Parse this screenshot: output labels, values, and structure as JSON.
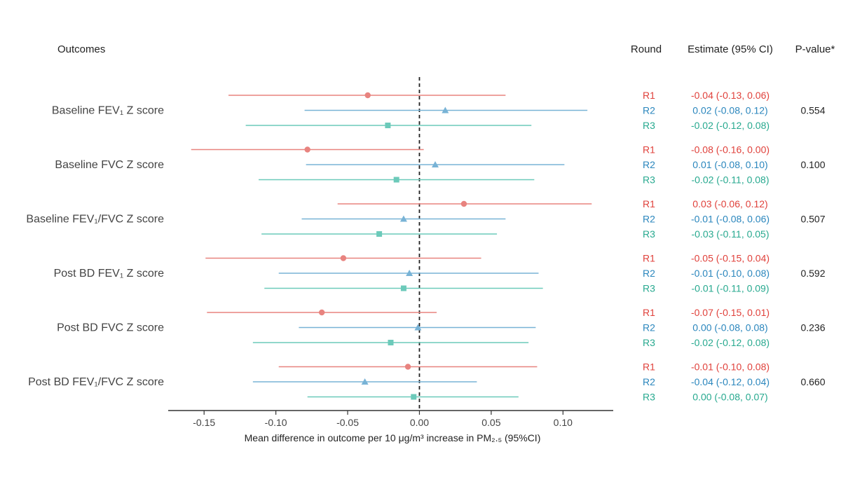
{
  "chart_data": {
    "type": "forest",
    "xlabel": "Mean difference in outcome per 10 μg/m³ increase in PM₂.₅ (95%CI)",
    "xlim": [
      -0.175,
      0.135
    ],
    "xticks": [
      -0.15,
      -0.1,
      -0.05,
      0.0,
      0.05,
      0.1
    ],
    "tick_labels": [
      "-0.15",
      "-0.10",
      "-0.05",
      "0.00",
      "0.05",
      "0.10"
    ],
    "reference_line": 0,
    "headers": {
      "outcomes": "Outcomes",
      "round": "Round",
      "estimate": "Estimate (95% CI)",
      "pvalue": "P-value*"
    },
    "rounds": [
      {
        "name": "R1",
        "color": "#e8837f",
        "text_color": "#e0413b",
        "marker": "circle"
      },
      {
        "name": "R2",
        "color": "#78b3d6",
        "text_color": "#2a86bd",
        "marker": "triangle"
      },
      {
        "name": "R3",
        "color": "#6ccaba",
        "text_color": "#27a98f",
        "marker": "square"
      }
    ],
    "outcomes": [
      {
        "label": "Baseline FEV₁ Z score",
        "pvalue": "0.554",
        "rows": [
          {
            "round": "R1",
            "est": -0.036,
            "lo": -0.133,
            "hi": 0.06,
            "text": "-0.04 (-0.13, 0.06)"
          },
          {
            "round": "R2",
            "est": 0.018,
            "lo": -0.08,
            "hi": 0.117,
            "text": "0.02 (-0.08, 0.12)"
          },
          {
            "round": "R3",
            "est": -0.022,
            "lo": -0.121,
            "hi": 0.078,
            "text": "-0.02 (-0.12, 0.08)"
          }
        ]
      },
      {
        "label": "Baseline FVC Z score",
        "pvalue": "0.100",
        "rows": [
          {
            "round": "R1",
            "est": -0.078,
            "lo": -0.159,
            "hi": 0.003,
            "text": "-0.08 (-0.16, 0.00)"
          },
          {
            "round": "R2",
            "est": 0.011,
            "lo": -0.079,
            "hi": 0.101,
            "text": "0.01 (-0.08, 0.10)"
          },
          {
            "round": "R3",
            "est": -0.016,
            "lo": -0.112,
            "hi": 0.08,
            "text": "-0.02 (-0.11, 0.08)"
          }
        ]
      },
      {
        "label": "Baseline FEV₁/FVC Z score",
        "pvalue": "0.507",
        "rows": [
          {
            "round": "R1",
            "est": 0.031,
            "lo": -0.057,
            "hi": 0.12,
            "text": "0.03 (-0.06, 0.12)"
          },
          {
            "round": "R2",
            "est": -0.011,
            "lo": -0.082,
            "hi": 0.06,
            "text": "-0.01 (-0.08, 0.06)"
          },
          {
            "round": "R3",
            "est": -0.028,
            "lo": -0.11,
            "hi": 0.054,
            "text": "-0.03 (-0.11, 0.05)"
          }
        ]
      },
      {
        "label": "Post BD FEV₁ Z score",
        "pvalue": "0.592",
        "rows": [
          {
            "round": "R1",
            "est": -0.053,
            "lo": -0.149,
            "hi": 0.043,
            "text": "-0.05 (-0.15, 0.04)"
          },
          {
            "round": "R2",
            "est": -0.007,
            "lo": -0.098,
            "hi": 0.083,
            "text": "-0.01 (-0.10, 0.08)"
          },
          {
            "round": "R3",
            "est": -0.011,
            "lo": -0.108,
            "hi": 0.086,
            "text": "-0.01 (-0.11, 0.09)"
          }
        ]
      },
      {
        "label": "Post BD FVC Z score",
        "pvalue": "0.236",
        "rows": [
          {
            "round": "R1",
            "est": -0.068,
            "lo": -0.148,
            "hi": 0.012,
            "text": "-0.07 (-0.15, 0.01)"
          },
          {
            "round": "R2",
            "est": -0.001,
            "lo": -0.084,
            "hi": 0.081,
            "text": "0.00 (-0.08, 0.08)"
          },
          {
            "round": "R3",
            "est": -0.02,
            "lo": -0.116,
            "hi": 0.076,
            "text": "-0.02 (-0.12, 0.08)"
          }
        ]
      },
      {
        "label": "Post BD FEV₁/FVC Z score",
        "pvalue": "0.660",
        "rows": [
          {
            "round": "R1",
            "est": -0.008,
            "lo": -0.098,
            "hi": 0.082,
            "text": "-0.01 (-0.10, 0.08)"
          },
          {
            "round": "R2",
            "est": -0.038,
            "lo": -0.116,
            "hi": 0.04,
            "text": "-0.04 (-0.12, 0.04)"
          },
          {
            "round": "R3",
            "est": -0.004,
            "lo": -0.078,
            "hi": 0.069,
            "text": "0.00 (-0.08, 0.07)"
          }
        ]
      }
    ]
  }
}
